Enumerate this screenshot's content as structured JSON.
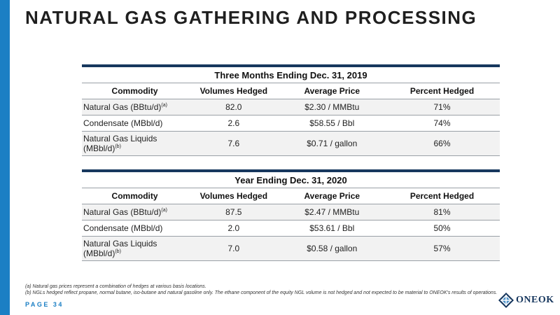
{
  "title": "NATURAL GAS GATHERING AND PROCESSING",
  "tables": [
    {
      "caption": "Three Months Ending Dec. 31, 2019",
      "headers": [
        "Commodity",
        "Volumes Hedged",
        "Average Price",
        "Percent Hedged"
      ],
      "rows": [
        {
          "commodity": "Natural Gas (BBtu/d)",
          "note": "(a)",
          "volume": "82.0",
          "price": "$2.30 / MMBtu",
          "percent": "71%"
        },
        {
          "commodity": "Condensate (MBbl/d)",
          "note": "",
          "volume": "2.6",
          "price": "$58.55 / Bbl",
          "percent": "74%"
        },
        {
          "commodity": "Natural Gas Liquids (MBbl/d)",
          "note": "(b)",
          "volume": "7.6",
          "price": "$0.71 / gallon",
          "percent": "66%"
        }
      ]
    },
    {
      "caption": "Year Ending Dec. 31, 2020",
      "headers": [
        "Commodity",
        "Volumes Hedged",
        "Average Price",
        "Percent Hedged"
      ],
      "rows": [
        {
          "commodity": "Natural Gas (BBtu/d)",
          "note": "(a)",
          "volume": "87.5",
          "price": "$2.47 / MMBtu",
          "percent": "81%"
        },
        {
          "commodity": "Condensate (MBbl/d)",
          "note": "",
          "volume": "2.0",
          "price": "$53.61 / Bbl",
          "percent": "50%"
        },
        {
          "commodity": "Natural Gas Liquids (MBbl/d)",
          "note": "(b)",
          "volume": "7.0",
          "price": "$0.58 / gallon",
          "percent": "57%"
        }
      ]
    }
  ],
  "footnotes": [
    "(a) Natural gas prices represent a combination of hedges at various basis locations.",
    "(b) NGLs hedged reflect propane, normal butane, iso-butane and natural gasoline only. The ethane component of the equity NGL volume is not hedged and not expected to be material to ONEOK's results of operations."
  ],
  "page_label": "PAGE 34",
  "logo_text": "ONEOK",
  "colors": {
    "accent": "#1b7fc4",
    "navy": "#17375e",
    "row_shade": "#f2f2f2"
  }
}
